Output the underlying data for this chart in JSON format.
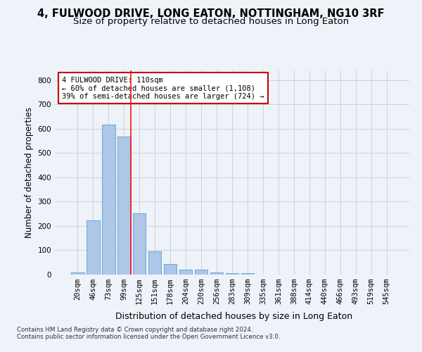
{
  "title": "4, FULWOOD DRIVE, LONG EATON, NOTTINGHAM, NG10 3RF",
  "subtitle": "Size of property relative to detached houses in Long Eaton",
  "xlabel": "Distribution of detached houses by size in Long Eaton",
  "ylabel": "Number of detached properties",
  "bar_values": [
    10,
    224,
    617,
    567,
    253,
    95,
    44,
    21,
    21,
    10,
    7,
    7,
    0,
    0,
    0,
    0,
    0,
    0,
    0,
    0,
    0
  ],
  "bar_labels": [
    "20sqm",
    "46sqm",
    "73sqm",
    "99sqm",
    "125sqm",
    "151sqm",
    "178sqm",
    "204sqm",
    "230sqm",
    "256sqm",
    "283sqm",
    "309sqm",
    "335sqm",
    "361sqm",
    "388sqm",
    "414sqm",
    "440sqm",
    "466sqm",
    "493sqm",
    "519sqm",
    "545sqm"
  ],
  "bar_color": "#aec6e8",
  "bar_edge_color": "#5a9fd4",
  "ylim": [
    0,
    840
  ],
  "yticks": [
    0,
    100,
    200,
    300,
    400,
    500,
    600,
    700,
    800
  ],
  "vline_x_index": 3.45,
  "annotation_text": "4 FULWOOD DRIVE: 110sqm\n← 60% of detached houses are smaller (1,108)\n39% of semi-detached houses are larger (724) →",
  "annotation_box_color": "#ffffff",
  "annotation_border_color": "#cc0000",
  "footer_text": "Contains HM Land Registry data © Crown copyright and database right 2024.\nContains public sector information licensed under the Open Government Licence v3.0.",
  "background_color": "#eef2f9",
  "grid_color": "#cccccc",
  "title_fontsize": 10.5,
  "subtitle_fontsize": 9.5,
  "xlabel_fontsize": 9,
  "ylabel_fontsize": 8.5,
  "tick_fontsize": 7.5,
  "annot_fontsize": 7.5,
  "footer_fontsize": 6.2
}
